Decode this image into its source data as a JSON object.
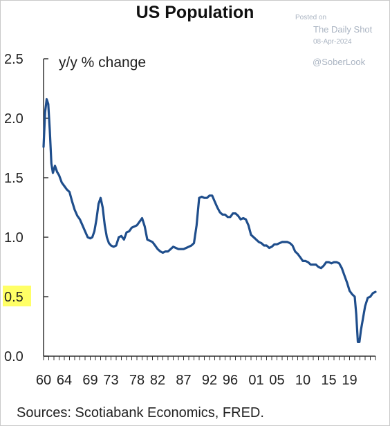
{
  "watermark": {
    "posted": "Posted on",
    "site": "The Daily Shot",
    "date": "08-Apr-2024",
    "handle": "@SoberLook"
  },
  "source": "Sources: Scotiabank Economics, FRED.",
  "colors": {
    "line": "#1f4e8c",
    "highlight": "#ffff66",
    "axis": "#333333"
  },
  "chart_data": {
    "type": "line",
    "title": "US Population",
    "ylabel": "y/y % change",
    "xlabel": "",
    "ylim": [
      0,
      2.5
    ],
    "xlim": [
      1960,
      2024
    ],
    "y_ticks": [
      "0.0",
      "0.5",
      "1.0",
      "1.5",
      "2.0",
      "2.5"
    ],
    "highlighted_y_tick": "0.5",
    "x_tick_labels": [
      "60",
      "64",
      "69",
      "73",
      "78",
      "82",
      "87",
      "92",
      "96",
      "01",
      "05",
      "10",
      "15",
      "19"
    ],
    "series": [
      {
        "name": "",
        "x": [
          1960.0,
          1960.3,
          1960.6,
          1960.9,
          1961.2,
          1961.5,
          1961.8,
          1962.2,
          1962.6,
          1963.0,
          1963.5,
          1964.0,
          1964.5,
          1965.0,
          1965.5,
          1966.0,
          1966.5,
          1967.0,
          1967.5,
          1968.0,
          1968.5,
          1969.0,
          1969.4,
          1969.8,
          1970.2,
          1970.6,
          1971.0,
          1971.4,
          1971.8,
          1972.2,
          1972.6,
          1973.0,
          1973.5,
          1974.0,
          1974.5,
          1975.0,
          1975.5,
          1976.0,
          1976.5,
          1977.0,
          1977.5,
          1978.0,
          1978.5,
          1979.0,
          1979.5,
          1980.0,
          1980.5,
          1981.0,
          1981.5,
          1982.0,
          1982.5,
          1983.0,
          1983.5,
          1984.0,
          1984.5,
          1985.0,
          1985.5,
          1986.0,
          1986.5,
          1987.0,
          1987.5,
          1988.0,
          1988.5,
          1989.0,
          1989.5,
          1990.0,
          1990.5,
          1991.0,
          1991.5,
          1992.0,
          1992.5,
          1993.0,
          1993.5,
          1994.0,
          1994.5,
          1995.0,
          1995.5,
          1996.0,
          1996.5,
          1997.0,
          1997.5,
          1998.0,
          1998.5,
          1999.0,
          1999.5,
          2000.0,
          2000.5,
          2001.0,
          2001.5,
          2002.0,
          2002.5,
          2003.0,
          2003.5,
          2004.0,
          2004.5,
          2005.0,
          2005.5,
          2006.0,
          2006.5,
          2007.0,
          2007.5,
          2008.0,
          2008.5,
          2009.0,
          2009.5,
          2010.0,
          2010.5,
          2011.0,
          2011.5,
          2012.0,
          2012.5,
          2013.0,
          2013.5,
          2014.0,
          2014.5,
          2015.0,
          2015.5,
          2016.0,
          2016.5,
          2017.0,
          2017.5,
          2018.0,
          2018.5,
          2019.0,
          2019.5,
          2020.0,
          2020.3,
          2020.6,
          2020.9,
          2021.2,
          2021.6,
          2022.0,
          2022.5,
          2023.0,
          2023.5,
          2024.0
        ],
        "y": [
          1.76,
          2.05,
          2.16,
          2.12,
          1.9,
          1.62,
          1.54,
          1.6,
          1.55,
          1.52,
          1.46,
          1.43,
          1.4,
          1.38,
          1.3,
          1.23,
          1.18,
          1.15,
          1.1,
          1.05,
          1.0,
          0.99,
          1.0,
          1.05,
          1.15,
          1.28,
          1.33,
          1.25,
          1.1,
          1.0,
          0.95,
          0.93,
          0.92,
          0.93,
          1.0,
          1.01,
          0.98,
          1.04,
          1.05,
          1.08,
          1.09,
          1.1,
          1.13,
          1.16,
          1.09,
          0.98,
          0.97,
          0.96,
          0.93,
          0.9,
          0.88,
          0.87,
          0.88,
          0.88,
          0.9,
          0.92,
          0.91,
          0.9,
          0.9,
          0.9,
          0.91,
          0.92,
          0.93,
          0.95,
          1.1,
          1.33,
          1.34,
          1.33,
          1.33,
          1.35,
          1.35,
          1.3,
          1.25,
          1.21,
          1.19,
          1.19,
          1.17,
          1.17,
          1.2,
          1.2,
          1.18,
          1.15,
          1.16,
          1.15,
          1.1,
          1.02,
          1.0,
          0.98,
          0.96,
          0.95,
          0.93,
          0.93,
          0.91,
          0.92,
          0.94,
          0.94,
          0.95,
          0.96,
          0.96,
          0.96,
          0.95,
          0.93,
          0.88,
          0.86,
          0.83,
          0.8,
          0.8,
          0.79,
          0.77,
          0.77,
          0.77,
          0.75,
          0.74,
          0.76,
          0.79,
          0.79,
          0.78,
          0.79,
          0.79,
          0.78,
          0.74,
          0.68,
          0.62,
          0.55,
          0.52,
          0.5,
          0.35,
          0.12,
          0.12,
          0.22,
          0.32,
          0.42,
          0.49,
          0.5,
          0.53,
          0.54
        ]
      }
    ]
  }
}
